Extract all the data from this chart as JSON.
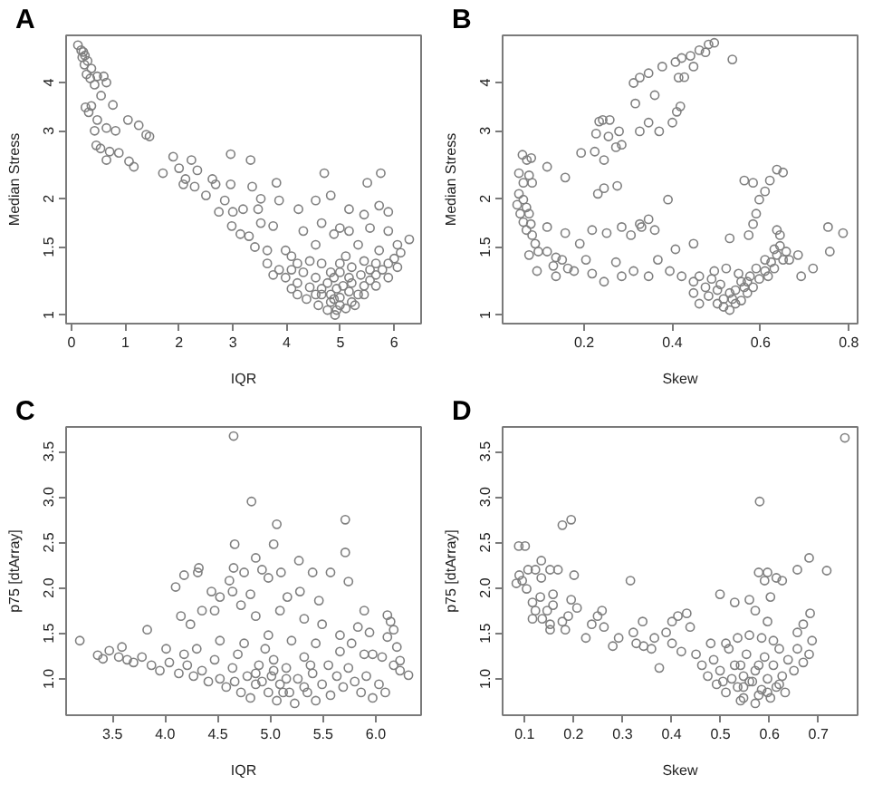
{
  "chart_data": [
    {
      "type": "scatter",
      "title": "A",
      "xlabel": "IQR",
      "ylabel": "Median Stress",
      "log": "y",
      "marker": "circle",
      "color": "#7f7f7f",
      "xlim": [
        -0.1,
        6.5
      ],
      "ylim": [
        0.95,
        5.3
      ],
      "xticks": [
        0,
        1,
        2,
        3,
        4,
        5,
        6
      ],
      "yticks": [
        1,
        1.5,
        2,
        3,
        4
      ],
      "x": [
        0.12,
        0.18,
        0.22,
        0.25,
        0.2,
        0.3,
        0.24,
        0.37,
        0.28,
        0.48,
        0.6,
        0.35,
        0.65,
        0.43,
        0.55,
        0.26,
        0.37,
        0.77,
        0.32,
        0.48,
        1.05,
        1.25,
        0.43,
        0.65,
        0.82,
        1.39,
        1.45,
        0.46,
        0.54,
        0.71,
        0.88,
        0.65,
        1.07,
        1.16,
        1.7,
        1.89,
        2.0,
        2.23,
        2.96,
        3.33,
        2.12,
        2.34,
        2.62,
        2.08,
        2.29,
        2.5,
        2.68,
        2.96,
        3.36,
        3.81,
        2.74,
        2.85,
        3.0,
        3.19,
        3.52,
        3.86,
        3.47,
        2.98,
        3.14,
        3.3,
        3.52,
        3.75,
        3.41,
        3.64,
        4.22,
        4.54,
        4.82,
        4.7,
        5.5,
        5.75,
        5.16,
        5.44,
        5.72,
        5.89,
        4.31,
        4.65,
        4.99,
        4.88,
        5.16,
        5.55,
        5.89,
        6.28,
        6.06,
        3.98,
        4.09,
        4.54,
        5.33,
        5.72,
        3.64,
        3.86,
        3.75,
        3.98,
        4.09,
        4.2,
        4.31,
        4.43,
        4.54,
        4.65,
        4.76,
        4.82,
        4.93,
        4.99,
        5.1,
        5.16,
        5.21,
        5.33,
        5.44,
        5.55,
        5.66,
        5.78,
        5.89,
        6.0,
        6.12,
        6.06,
        5.89,
        5.66,
        5.44,
        5.27,
        4.76,
        4.59,
        4.37,
        4.2,
        4.09,
        4.88,
        4.99,
        5.21,
        5.44,
        5.66,
        4.65,
        4.43,
        4.2,
        5.1,
        4.99,
        4.82,
        5.16,
        5.38,
        5.55,
        4.93,
        5.05,
        4.65,
        4.54,
        4.82,
        4.99,
        4.88,
        5.21,
        4.9
      ],
      "values": [
        5.0,
        4.85,
        4.8,
        4.7,
        4.65,
        4.55,
        4.45,
        4.35,
        4.2,
        4.15,
        4.15,
        4.1,
        4.0,
        3.95,
        3.7,
        3.45,
        3.48,
        3.5,
        3.35,
        3.2,
        3.2,
        3.1,
        3.0,
        3.05,
        3.0,
        2.93,
        2.9,
        2.75,
        2.7,
        2.65,
        2.63,
        2.52,
        2.5,
        2.42,
        2.33,
        2.57,
        2.4,
        2.52,
        2.61,
        2.52,
        2.25,
        2.37,
        2.25,
        2.18,
        2.15,
        2.04,
        2.18,
        2.18,
        2.15,
        2.2,
        1.85,
        1.98,
        1.85,
        1.88,
        2.0,
        1.98,
        1.88,
        1.7,
        1.62,
        1.6,
        1.73,
        1.7,
        1.5,
        1.47,
        1.88,
        1.98,
        2.04,
        2.33,
        2.2,
        2.33,
        1.88,
        1.82,
        1.92,
        1.85,
        1.65,
        1.73,
        1.68,
        1.62,
        1.65,
        1.68,
        1.65,
        1.57,
        1.52,
        1.47,
        1.42,
        1.52,
        1.52,
        1.47,
        1.36,
        1.31,
        1.27,
        1.25,
        1.31,
        1.21,
        1.29,
        1.18,
        1.25,
        1.13,
        1.21,
        1.08,
        1.03,
        1.11,
        1.04,
        1.15,
        1.08,
        1.13,
        1.19,
        1.23,
        1.27,
        1.31,
        1.36,
        1.4,
        1.45,
        1.33,
        1.25,
        1.19,
        1.13,
        1.06,
        1.03,
        1.06,
        1.1,
        1.13,
        1.17,
        1.25,
        1.29,
        1.33,
        1.38,
        1.36,
        1.36,
        1.38,
        1.36,
        1.42,
        1.36,
        1.29,
        1.25,
        1.27,
        1.31,
        1.17,
        1.19,
        1.17,
        1.13,
        1.13,
        1.06,
        1.1,
        1.21,
        1.0
      ]
    },
    {
      "type": "scatter",
      "title": "B",
      "xlabel": "Skew",
      "ylabel": "Median Stress",
      "log": "y",
      "marker": "circle",
      "color": "#7f7f7f",
      "xlim": [
        0.015,
        0.82
      ],
      "ylim": [
        0.95,
        5.3
      ],
      "xticks": [
        0.2,
        0.4,
        0.6,
        0.8
      ],
      "yticks": [
        1,
        1.5,
        2,
        3,
        4
      ],
      "x": [
        0.06,
        0.07,
        0.08,
        0.052,
        0.075,
        0.082,
        0.062,
        0.052,
        0.062,
        0.048,
        0.069,
        0.055,
        0.075,
        0.062,
        0.079,
        0.069,
        0.082,
        0.089,
        0.075,
        0.096,
        0.116,
        0.136,
        0.13,
        0.15,
        0.163,
        0.093,
        0.136,
        0.177,
        0.204,
        0.19,
        0.157,
        0.116,
        0.218,
        0.245,
        0.272,
        0.285,
        0.312,
        0.346,
        0.367,
        0.394,
        0.421,
        0.407,
        0.448,
        0.218,
        0.251,
        0.285,
        0.306,
        0.326,
        0.346,
        0.36,
        0.245,
        0.275,
        0.231,
        0.39,
        0.33,
        0.157,
        0.116,
        0.193,
        0.224,
        0.245,
        0.272,
        0.285,
        0.255,
        0.227,
        0.234,
        0.242,
        0.258,
        0.279,
        0.326,
        0.346,
        0.37,
        0.36,
        0.316,
        0.53,
        0.4,
        0.41,
        0.418,
        0.312,
        0.326,
        0.346,
        0.377,
        0.407,
        0.421,
        0.441,
        0.461,
        0.482,
        0.495,
        0.475,
        0.448,
        0.414,
        0.427,
        0.536,
        0.563,
        0.583,
        0.621,
        0.637,
        0.651,
        0.61,
        0.597,
        0.59,
        0.583,
        0.573,
        0.637,
        0.644,
        0.753,
        0.787,
        0.757,
        0.685,
        0.719,
        0.665,
        0.692,
        0.448,
        0.461,
        0.475,
        0.489,
        0.482,
        0.502,
        0.516,
        0.53,
        0.516,
        0.543,
        0.556,
        0.57,
        0.583,
        0.597,
        0.61,
        0.624,
        0.637,
        0.644,
        0.631,
        0.61,
        0.59,
        0.576,
        0.556,
        0.543,
        0.563,
        0.53,
        0.509,
        0.495,
        0.522,
        0.55,
        0.57,
        0.617,
        0.631,
        0.651,
        0.448,
        0.461,
        0.536,
        0.502,
        0.658
      ],
      "values": [
        2.6,
        2.52,
        2.55,
        2.33,
        2.3,
        2.2,
        2.2,
        2.06,
        1.99,
        1.93,
        1.9,
        1.83,
        1.83,
        1.74,
        1.72,
        1.66,
        1.61,
        1.53,
        1.43,
        1.46,
        1.46,
        1.41,
        1.34,
        1.39,
        1.32,
        1.3,
        1.26,
        1.3,
        1.39,
        1.53,
        1.63,
        1.69,
        1.28,
        1.22,
        1.37,
        1.26,
        1.3,
        1.26,
        1.39,
        1.3,
        1.26,
        1.48,
        1.53,
        1.66,
        1.63,
        1.69,
        1.61,
        1.72,
        1.77,
        1.66,
        2.13,
        2.16,
        2.06,
        1.99,
        1.69,
        2.27,
        2.42,
        2.63,
        2.65,
        2.52,
        2.72,
        2.76,
        2.9,
        2.95,
        3.17,
        3.2,
        3.2,
        2.99,
        2.99,
        3.15,
        2.99,
        3.71,
        3.53,
        1.58,
        3.15,
        3.36,
        3.47,
        3.99,
        4.12,
        4.23,
        4.4,
        4.52,
        4.63,
        4.69,
        4.85,
        5.02,
        5.07,
        4.79,
        4.4,
        4.12,
        4.13,
        4.59,
        2.23,
        2.2,
        2.23,
        2.38,
        2.34,
        2.09,
        1.99,
        1.83,
        1.72,
        1.61,
        1.66,
        1.61,
        1.69,
        1.63,
        1.46,
        1.43,
        1.32,
        1.39,
        1.26,
        1.22,
        1.26,
        1.18,
        1.24,
        1.12,
        1.16,
        1.1,
        1.03,
        1.05,
        1.07,
        1.09,
        1.14,
        1.18,
        1.24,
        1.3,
        1.37,
        1.43,
        1.51,
        1.48,
        1.39,
        1.32,
        1.26,
        1.22,
        1.16,
        1.18,
        1.14,
        1.2,
        1.3,
        1.32,
        1.28,
        1.22,
        1.26,
        1.32,
        1.39,
        1.14,
        1.07,
        1.1,
        1.07,
        1.46
      ]
    },
    {
      "type": "scatter",
      "title": "C",
      "xlabel": "IQR",
      "ylabel": "p75 [dtArray]",
      "marker": "circle",
      "color": "#7f7f7f",
      "xlim": [
        3.06,
        6.43
      ],
      "ylim": [
        0.6,
        3.77
      ],
      "xticks": [
        3.5,
        {
          "value": 4,
          "label": "4.0"
        },
        4.5,
        {
          "value": 5,
          "label": "5.0"
        },
        5.5,
        {
          "value": 6,
          "label": "6.0"
        }
      ],
      "yticks": [
        {
          "value": 1,
          "label": "1.0"
        },
        1.5,
        {
          "value": 2,
          "label": "2.0"
        },
        2.5,
        {
          "value": 3,
          "label": "3.0"
        },
        3.5
      ],
      "x": [
        3.19,
        3.36,
        3.41,
        3.47,
        3.56,
        3.59,
        3.64,
        3.7,
        3.78,
        3.83,
        3.87,
        3.95,
        4.01,
        4.1,
        4.18,
        4.31,
        4.32,
        4.15,
        4.24,
        4.35,
        4.44,
        4.52,
        4.61,
        4.66,
        4.65,
        4.65,
        4.82,
        4.75,
        4.86,
        4.92,
        5.06,
        5.03,
        4.98,
        5.1,
        5.16,
        5.27,
        5.4,
        5.57,
        5.71,
        5.71,
        5.74,
        5.46,
        5.28,
        4.81,
        4.64,
        4.47,
        4.72,
        4.86,
        5.09,
        5.32,
        5.49,
        5.89,
        6.11,
        6.14,
        6.17,
        6.2,
        6.11,
        5.94,
        5.83,
        5.77,
        5.66,
        6.31,
        6.23,
        6.23,
        6.17,
        6.06,
        5.97,
        4.04,
        4.13,
        4.21,
        4.27,
        4.35,
        4.41,
        4.47,
        4.52,
        4.58,
        4.64,
        4.69,
        4.72,
        4.78,
        4.81,
        4.86,
        4.89,
        4.95,
        4.98,
        5.01,
        5.06,
        5.09,
        5.15,
        5.18,
        5.23,
        5.26,
        5.32,
        5.35,
        5.4,
        5.43,
        5.49,
        5.55,
        5.57,
        5.63,
        5.69,
        5.74,
        5.8,
        5.86,
        5.91,
        5.97,
        6.03,
        6.09,
        5.89,
        5.66,
        5.43,
        5.2,
        4.98,
        4.75,
        4.52,
        4.3,
        4.18,
        4.92,
        5.03,
        5.12,
        5.32,
        5.38,
        5.15,
        4.86,
        4.66,
        5.03
      ],
      "values": [
        1.42,
        1.26,
        1.22,
        1.31,
        1.24,
        1.35,
        1.21,
        1.18,
        1.24,
        1.54,
        1.15,
        1.09,
        1.33,
        2.01,
        2.14,
        2.17,
        2.22,
        1.69,
        1.6,
        1.75,
        1.96,
        1.9,
        2.08,
        2.48,
        2.22,
        3.67,
        2.95,
        2.17,
        2.33,
        2.2,
        2.7,
        2.48,
        2.11,
        2.17,
        1.9,
        2.3,
        2.17,
        2.17,
        2.75,
        2.39,
        2.07,
        1.86,
        1.96,
        1.93,
        1.96,
        1.75,
        1.81,
        1.69,
        1.75,
        1.66,
        1.6,
        1.75,
        1.7,
        1.63,
        1.54,
        1.35,
        1.46,
        1.51,
        1.57,
        1.39,
        1.48,
        1.04,
        1.09,
        1.2,
        1.15,
        1.24,
        1.27,
        1.18,
        1.06,
        1.15,
        1.03,
        1.09,
        0.97,
        1.21,
        1.0,
        0.91,
        1.12,
        1.27,
        0.85,
        1.03,
        0.79,
        0.94,
        1.15,
        1.33,
        0.85,
        1.03,
        0.76,
        0.94,
        1.12,
        0.85,
        0.73,
        1.0,
        1.24,
        0.85,
        1.06,
        0.76,
        0.94,
        1.15,
        0.82,
        1.03,
        0.91,
        1.12,
        0.97,
        0.85,
        1.03,
        0.79,
        0.94,
        0.85,
        1.27,
        1.3,
        1.39,
        1.42,
        1.48,
        1.39,
        1.42,
        1.33,
        1.27,
        0.97,
        1.09,
        0.85,
        0.91,
        1.15,
        1.0,
        1.06,
        0.97,
        1.21
      ]
    },
    {
      "type": "scatter",
      "title": "D",
      "xlabel": "Skew",
      "ylabel": "p75 [dtArray]",
      "marker": "circle",
      "color": "#7f7f7f",
      "xlim": [
        0.055,
        0.78
      ],
      "ylim": [
        0.6,
        3.77
      ],
      "xticks": [
        0.1,
        0.2,
        0.3,
        0.4,
        0.5,
        0.6,
        0.7
      ],
      "yticks": [
        {
          "value": 1,
          "label": "1.0"
        },
        1.5,
        {
          "value": 2,
          "label": "2.0"
        },
        2.5,
        {
          "value": 3,
          "label": "3.0"
        },
        3.5
      ],
      "x": [
        0.754,
        0.58,
        0.177,
        0.195,
        0.088,
        0.101,
        0.089,
        0.095,
        0.107,
        0.122,
        0.134,
        0.134,
        0.152,
        0.168,
        0.201,
        0.104,
        0.083,
        0.116,
        0.132,
        0.158,
        0.158,
        0.195,
        0.207,
        0.122,
        0.146,
        0.116,
        0.136,
        0.152,
        0.177,
        0.189,
        0.152,
        0.183,
        0.225,
        0.237,
        0.249,
        0.258,
        0.262,
        0.28,
        0.292,
        0.316,
        0.322,
        0.328,
        0.341,
        0.343,
        0.359,
        0.365,
        0.375,
        0.389,
        0.401,
        0.413,
        0.431,
        0.438,
        0.401,
        0.42,
        0.499,
        0.529,
        0.578,
        0.596,
        0.59,
        0.614,
        0.626,
        0.657,
        0.681,
        0.717,
        0.683,
        0.687,
        0.669,
        0.657,
        0.596,
        0.602,
        0.571,
        0.559,
        0.45,
        0.462,
        0.474,
        0.486,
        0.492,
        0.499,
        0.511,
        0.517,
        0.523,
        0.535,
        0.541,
        0.547,
        0.553,
        0.559,
        0.571,
        0.571,
        0.584,
        0.59,
        0.596,
        0.602,
        0.608,
        0.614,
        0.62,
        0.626,
        0.632,
        0.638,
        0.65,
        0.657,
        0.669,
        0.681,
        0.535,
        0.559,
        0.584,
        0.608,
        0.511,
        0.48,
        0.565,
        0.578,
        0.547,
        0.529,
        0.547,
        0.596,
        0.62,
        0.505,
        0.578,
        0.541
      ],
      "values": [
        3.65,
        2.95,
        2.69,
        2.75,
        2.46,
        2.46,
        2.14,
        2.08,
        2.2,
        2.2,
        2.3,
        2.11,
        2.2,
        2.2,
        2.14,
        1.99,
        2.05,
        1.84,
        1.9,
        1.93,
        1.81,
        1.87,
        1.78,
        1.75,
        1.75,
        1.66,
        1.66,
        1.6,
        1.63,
        1.69,
        1.54,
        1.54,
        1.45,
        1.6,
        1.69,
        1.75,
        1.57,
        1.36,
        1.45,
        2.08,
        1.51,
        1.39,
        1.63,
        1.36,
        1.33,
        1.45,
        1.12,
        1.51,
        1.63,
        1.69,
        1.72,
        1.57,
        1.39,
        1.3,
        1.93,
        1.84,
        2.17,
        2.17,
        2.08,
        2.11,
        2.08,
        2.2,
        2.33,
        2.19,
        1.72,
        1.42,
        1.6,
        1.51,
        1.63,
        1.9,
        1.75,
        1.87,
        1.27,
        1.15,
        1.03,
        1.21,
        0.94,
        1.09,
        0.85,
        1.33,
        1.0,
        0.91,
        1.15,
        0.79,
        1.27,
        0.97,
        0.73,
        1.09,
        0.88,
        1.24,
        1.0,
        0.79,
        1.15,
        0.91,
        1.33,
        1.03,
        0.85,
        1.21,
        1.09,
        1.33,
        1.18,
        1.27,
        1.45,
        1.48,
        1.45,
        1.42,
        1.39,
        1.39,
        0.97,
        1.15,
        1.03,
        1.15,
        0.91,
        0.85,
        0.94,
        0.97,
        0.82,
        0.76
      ]
    }
  ]
}
